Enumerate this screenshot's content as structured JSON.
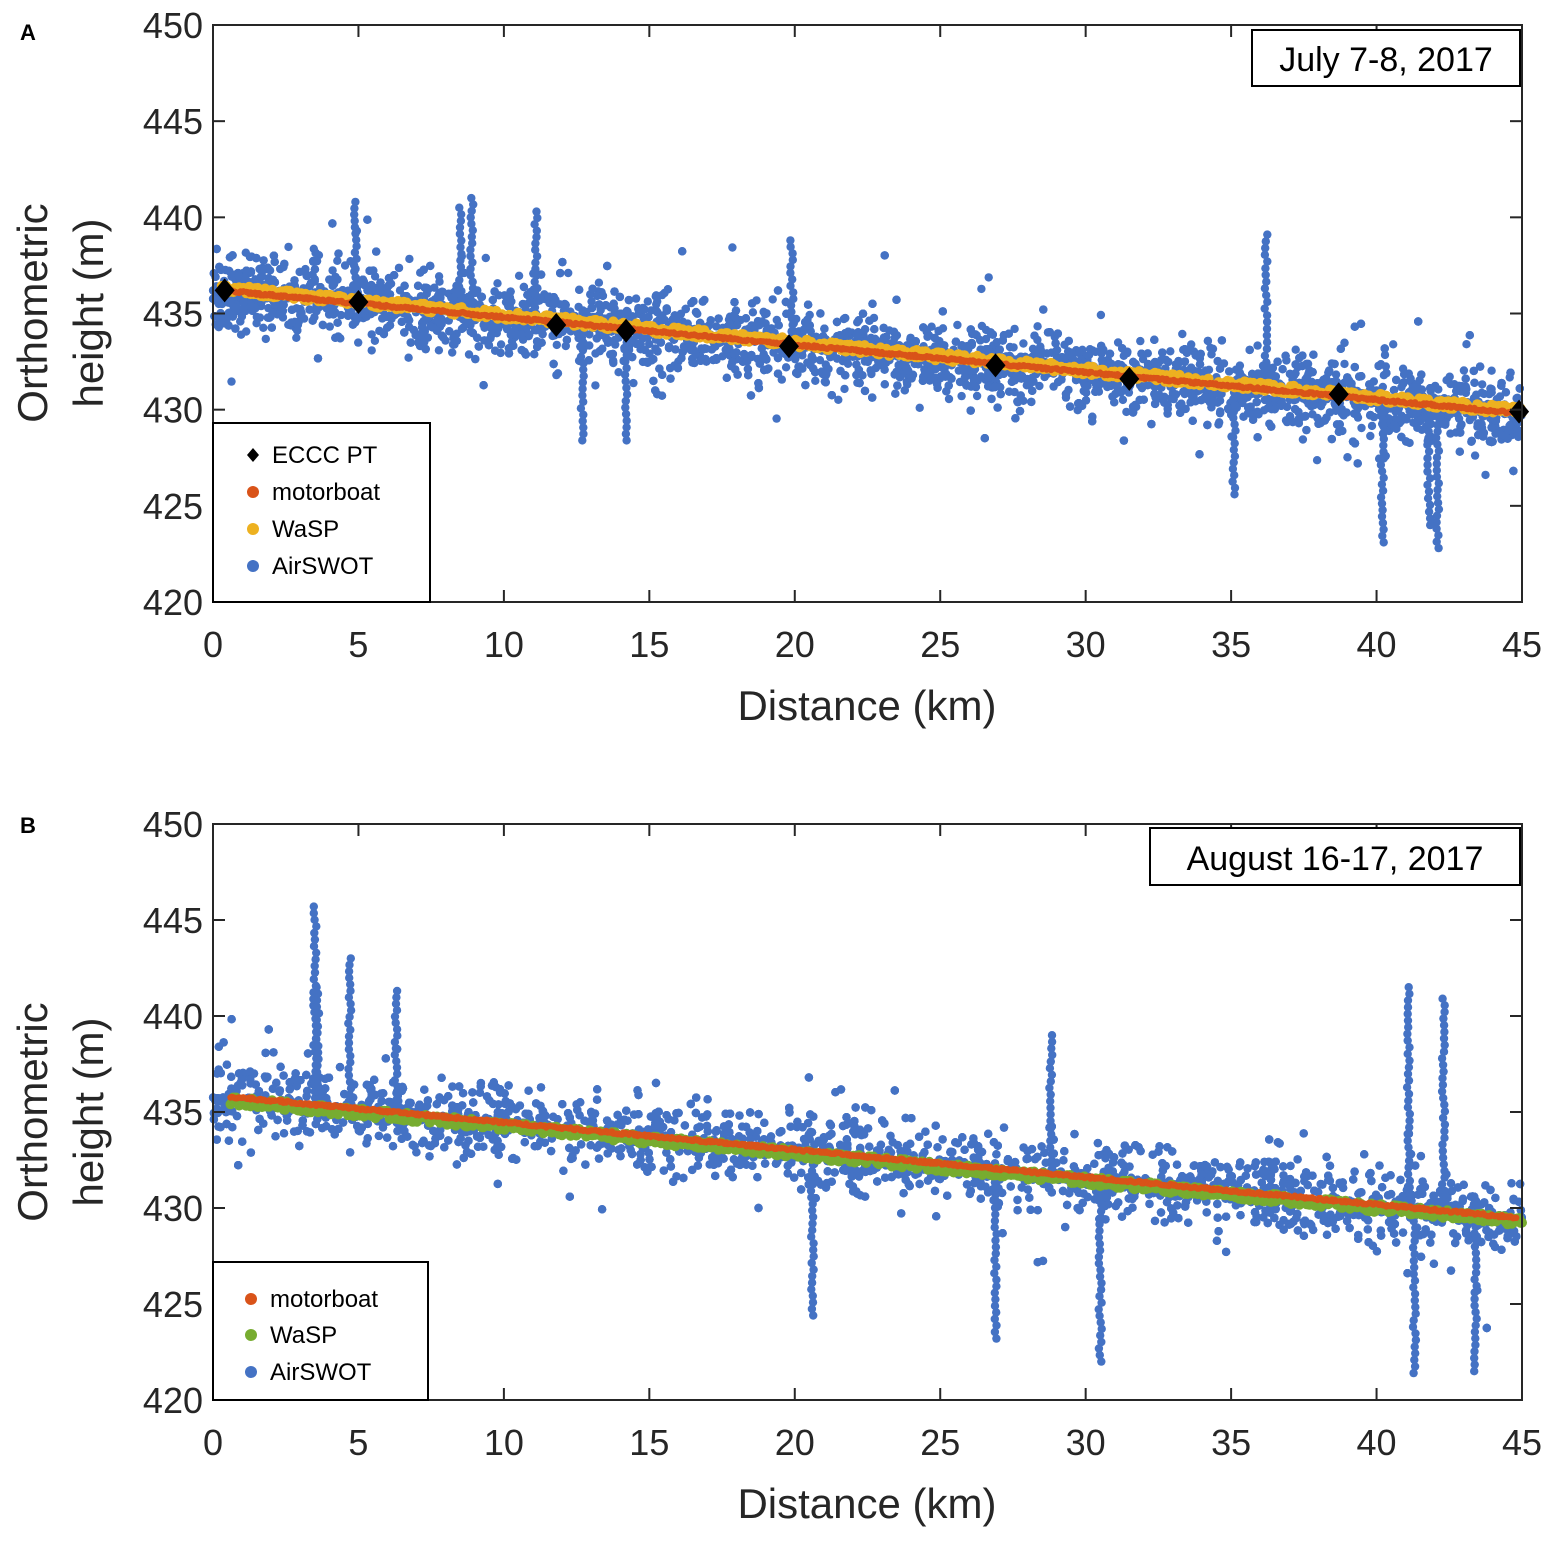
{
  "chart_data": [
    {
      "type": "scatter",
      "panel_label": "A",
      "date_label": "July 7-8, 2017",
      "xlabel": "Distance (km)",
      "ylabel_lines": [
        "Orthometric",
        "height (m)"
      ],
      "xlim": [
        0,
        45
      ],
      "ylim": [
        420,
        450
      ],
      "xticks": [
        0,
        5,
        10,
        15,
        20,
        25,
        30,
        35,
        40,
        45
      ],
      "yticks": [
        420,
        425,
        430,
        435,
        440,
        445,
        450
      ],
      "grid": false,
      "legend_position": "bottom-left",
      "legend": [
        {
          "label": "ECCC PT",
          "series": "eccc"
        },
        {
          "label": "motorboat",
          "series": "motorboat"
        },
        {
          "label": "WaSP",
          "series": "wasp"
        },
        {
          "label": "AirSWOT",
          "series": "airswot"
        }
      ],
      "colors": {
        "eccc": "#000000",
        "motorboat": "#D95319",
        "wasp": "#EDB120",
        "airswot": "#4472C4"
      },
      "series": [
        {
          "name": "ECCC PT",
          "marker": "diamond",
          "x": [
            0.4,
            5.0,
            11.8,
            14.2,
            19.8,
            26.9,
            31.5,
            38.7,
            44.9
          ],
          "y": [
            436.2,
            435.6,
            434.4,
            434.1,
            433.3,
            432.3,
            431.6,
            430.8,
            429.9
          ]
        },
        {
          "name": "motorboat",
          "marker": "dot",
          "x": [
            0.3,
            45.0
          ],
          "y": [
            436.2,
            429.8
          ]
        },
        {
          "name": "WaSP",
          "marker": "dot",
          "x": [
            0.3,
            45.0
          ],
          "y": [
            436.3,
            429.9
          ]
        },
        {
          "name": "AirSWOT",
          "marker": "dot",
          "x_range": [
            0,
            45
          ],
          "typical_spread": 2.5,
          "outliers": [
            {
              "x": 4.9,
              "y": 440.8
            },
            {
              "x": 8.5,
              "y": 440.5
            },
            {
              "x": 8.9,
              "y": 441.0
            },
            {
              "x": 11.1,
              "y": 440.3
            },
            {
              "x": 12.7,
              "y": 428.4
            },
            {
              "x": 14.2,
              "y": 428.4
            },
            {
              "x": 19.9,
              "y": 438.8
            },
            {
              "x": 35.1,
              "y": 425.6
            },
            {
              "x": 36.2,
              "y": 439.1
            },
            {
              "x": 40.2,
              "y": 423.1
            },
            {
              "x": 42.1,
              "y": 422.8
            },
            {
              "x": 41.8,
              "y": 424.0
            }
          ]
        }
      ]
    },
    {
      "type": "scatter",
      "panel_label": "B",
      "date_label": "August 16-17, 2017",
      "xlabel": "Distance (km)",
      "ylabel_lines": [
        "Orthometric",
        "height (m)"
      ],
      "xlim": [
        0,
        45
      ],
      "ylim": [
        420,
        450
      ],
      "xticks": [
        0,
        5,
        10,
        15,
        20,
        25,
        30,
        35,
        40,
        45
      ],
      "yticks": [
        420,
        425,
        430,
        435,
        440,
        445,
        450
      ],
      "grid": false,
      "legend_position": "bottom-left",
      "legend": [
        {
          "label": "motorboat",
          "series": "motorboat"
        },
        {
          "label": "WaSP",
          "series": "wasp"
        },
        {
          "label": "AirSWOT",
          "series": "airswot"
        }
      ],
      "colors": {
        "motorboat": "#D95319",
        "wasp": "#77AC30",
        "airswot": "#4472C4"
      },
      "series": [
        {
          "name": "motorboat",
          "marker": "dot",
          "x": [
            0.6,
            44.8
          ],
          "y": [
            435.8,
            429.5
          ]
        },
        {
          "name": "WaSP",
          "marker": "dot",
          "x": [
            0.6,
            45.0
          ],
          "y": [
            435.6,
            429.3
          ]
        },
        {
          "name": "AirSWOT",
          "marker": "dot",
          "x_range": [
            0,
            45
          ],
          "typical_spread": 2.5,
          "outliers": [
            {
              "x": 3.5,
              "y": 445.7
            },
            {
              "x": 3.6,
              "y": 441.5
            },
            {
              "x": 4.7,
              "y": 443.0
            },
            {
              "x": 6.3,
              "y": 441.3
            },
            {
              "x": 20.6,
              "y": 424.4
            },
            {
              "x": 26.9,
              "y": 423.2
            },
            {
              "x": 30.5,
              "y": 422.0
            },
            {
              "x": 41.1,
              "y": 441.5
            },
            {
              "x": 41.3,
              "y": 421.4
            },
            {
              "x": 42.3,
              "y": 440.9
            },
            {
              "x": 43.4,
              "y": 421.5
            },
            {
              "x": 28.8,
              "y": 439.0
            }
          ]
        }
      ]
    }
  ]
}
